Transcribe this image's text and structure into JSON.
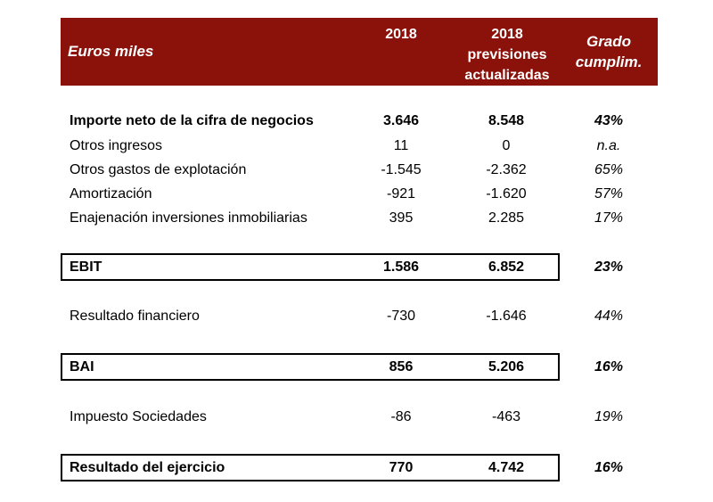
{
  "colors": {
    "header-bg": "#8B120B",
    "header-text": "#FFFFFF",
    "body-text": "#000000",
    "box-border": "#000000",
    "page-bg": "#FFFFFF"
  },
  "header": {
    "label": "Euros miles",
    "col_2018": "2018",
    "col_prev_line1": "2018",
    "col_prev_line2": "previsiones",
    "col_prev_line3": "actualizadas",
    "col_grado_line1": "Grado",
    "col_grado_line2": "cumplim."
  },
  "rows": [
    {
      "label": "Importe neto de la cifra de negocios",
      "actual_2018": "3.646",
      "previsiones": "8.548",
      "grado": "43%"
    },
    {
      "label": "Otros ingresos",
      "actual_2018": "11",
      "previsiones": "0",
      "grado": "n.a."
    },
    {
      "label": "Otros gastos de explotación",
      "actual_2018": "-1.545",
      "previsiones": "-2.362",
      "grado": "65%"
    },
    {
      "label": "Amortización",
      "actual_2018": "-921",
      "previsiones": "-1.620",
      "grado": "57%"
    },
    {
      "label": "Enajenación inversiones inmobiliarias",
      "actual_2018": "395",
      "previsiones": "2.285",
      "grado": "17%"
    },
    {
      "label": "EBIT",
      "actual_2018": "1.586",
      "previsiones": "6.852",
      "grado": "23%"
    },
    {
      "label": "Resultado financiero",
      "actual_2018": "-730",
      "previsiones": "-1.646",
      "grado": "44%"
    },
    {
      "label": "BAI",
      "actual_2018": "856",
      "previsiones": "5.206",
      "grado": "16%"
    },
    {
      "label": "Impuesto Sociedades",
      "actual_2018": "-86",
      "previsiones": "-463",
      "grado": "19%"
    },
    {
      "label": "Resultado del ejercicio",
      "actual_2018": "770",
      "previsiones": "4.742",
      "grado": "16%"
    }
  ]
}
